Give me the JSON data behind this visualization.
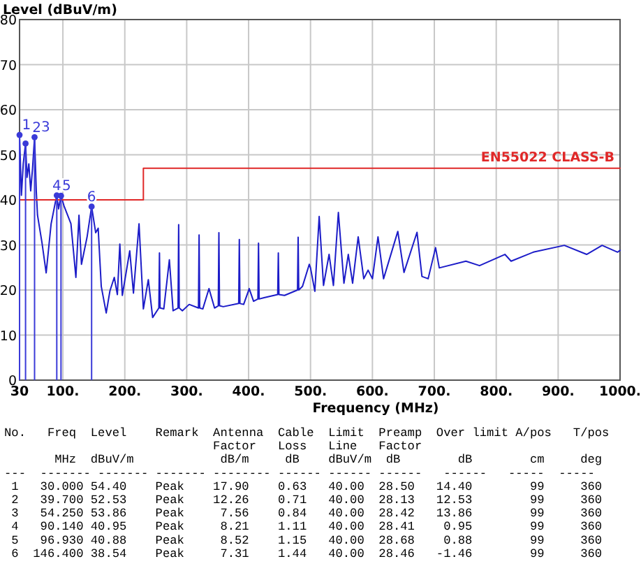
{
  "chart_data": {
    "type": "line",
    "ylabel": "Level (dBuV/m)",
    "xlabel": "Frequency (MHz)",
    "xlim": [
      30,
      1000
    ],
    "ylim": [
      0,
      80
    ],
    "xticks": [
      {
        "value": 30,
        "label": "30"
      },
      {
        "value": 100,
        "label": "100."
      },
      {
        "value": 200,
        "label": "200."
      },
      {
        "value": 300,
        "label": "300."
      },
      {
        "value": 400,
        "label": "400."
      },
      {
        "value": 500,
        "label": "500."
      },
      {
        "value": 600,
        "label": "600."
      },
      {
        "value": 700,
        "label": "700."
      },
      {
        "value": 800,
        "label": "800."
      },
      {
        "value": 900,
        "label": "900."
      },
      {
        "value": 1000,
        "label": "1000."
      }
    ],
    "yticks": [
      0,
      10,
      20,
      30,
      40,
      50,
      60,
      70,
      80
    ],
    "grid": true,
    "series": [
      {
        "color": "#1c1cc8",
        "x": [
          30,
          33,
          36,
          39.7,
          42,
          45,
          48,
          51,
          54.25,
          57,
          59,
          66,
          73,
          81,
          88,
          90.14,
          93,
          96.93,
          102,
          113,
          121,
          126,
          130,
          139,
          146.4,
          153,
          157,
          162,
          170,
          176,
          183,
          188,
          192,
          196,
          208,
          214,
          223,
          230,
          238,
          245,
          255,
          256,
          257,
          263,
          272,
          278,
          286,
          287,
          288,
          293,
          304,
          319,
          320,
          321,
          326,
          336,
          345,
          351,
          352,
          353,
          359,
          384,
          385,
          386,
          392,
          401,
          408,
          415,
          416,
          417,
          425,
          447,
          448,
          449,
          458,
          479,
          480,
          481,
          487,
          498,
          500,
          507,
          514,
          521,
          530,
          537,
          545,
          554,
          561,
          568,
          577,
          586,
          593,
          600,
          609,
          618,
          641,
          651,
          672,
          680,
          690,
          702,
          708,
          751,
          773,
          814,
          824,
          860,
          910,
          946,
          971,
          996,
          1000
        ],
        "values": [
          54.4,
          41,
          48,
          52.5,
          45,
          48,
          42,
          47,
          53.9,
          42,
          36.6,
          30.7,
          23.8,
          34.7,
          39.6,
          41,
          38,
          40.9,
          38.6,
          34.7,
          22.8,
          36.6,
          25.7,
          31.7,
          38.5,
          32.7,
          33.7,
          20.8,
          14.9,
          19.8,
          22.8,
          19,
          30.2,
          18.8,
          28.7,
          19.3,
          34.7,
          15.8,
          22.3,
          13.9,
          16,
          28.2,
          16,
          15.8,
          26.7,
          15.4,
          16,
          34.5,
          16,
          15.4,
          16.8,
          16,
          32.2,
          16,
          15.8,
          20.3,
          16,
          16.5,
          32.7,
          16.5,
          16.3,
          17,
          31.2,
          17,
          16.8,
          20.3,
          17.5,
          18,
          30.4,
          18,
          18.3,
          19,
          28.2,
          19,
          18.8,
          20,
          31.7,
          20,
          20.8,
          25.7,
          24.9,
          19.7,
          36.3,
          21,
          27.9,
          21,
          37.2,
          21.5,
          27.9,
          21.5,
          31.8,
          22.5,
          24.4,
          22.5,
          31.8,
          22.5,
          33,
          23.9,
          32.8,
          23,
          22.5,
          29.4,
          24.9,
          26.4,
          25.4,
          27.9,
          26.4,
          28.4,
          29.9,
          27.9,
          29.9,
          28.4,
          28.8
        ],
        "line_style": "solid"
      },
      {
        "type": "step",
        "name": "EN55022 CLASS-B",
        "color": "#e02828",
        "x": [
          30,
          230,
          1000
        ],
        "values": [
          40,
          47,
          47
        ]
      },
      {
        "type": "lollipop",
        "color": "#3a3ad8",
        "x": [
          30,
          39.7,
          54.25,
          90.14,
          96.93,
          146.4
        ],
        "values": [
          54.4,
          52.5,
          53.9,
          41,
          40.9,
          38.5
        ],
        "marker": "circle"
      }
    ],
    "annotations": [
      {
        "text": "1",
        "x": 30,
        "y": 54.4
      },
      {
        "text": "2",
        "x": 39.7,
        "y": 52.5
      },
      {
        "text": "3",
        "x": 54.25,
        "y": 53.9
      },
      {
        "text": "4",
        "x": 90.14,
        "y": 41
      },
      {
        "text": "5",
        "x": 96.93,
        "y": 40.9
      },
      {
        "text": "6",
        "x": 146.4,
        "y": 38.5
      },
      "No.   Freq  Level    Remark  Antenna  Cable  Limit  Preamp  Over limit A/pos   T/pos",
      "                             Factor   Loss   Line   Factor",
      "       MHz  dBuV/m            dB/m     dB    dBuV/m  dB        dB        cm     deg",
      "---  ------- ------- ------- -------- ------ ------ ------   ------   -----  -----",
      " 1   30.000 54.40    Peak    17.90    0.63   40.00  28.50   14.40        99     360",
      " 2   39.700 52.53    Peak    12.26    0.71   40.00  28.13   12.53        99     360",
      " 3   54.250 53.86    Peak     7.56    0.84   40.00  28.42   13.86        99     360",
      " 4   90.140 40.95    Peak     8.21    1.11   40.00  28.41    0.95        99     360",
      " 5   96.930 40.88    Peak     8.52    1.15   40.00  28.68    0.88        99     360",
      " 6  146.400 38.54    Peak     7.31    1.44   40.00  28.46   -1.46        99     360"
    ]
  }
}
